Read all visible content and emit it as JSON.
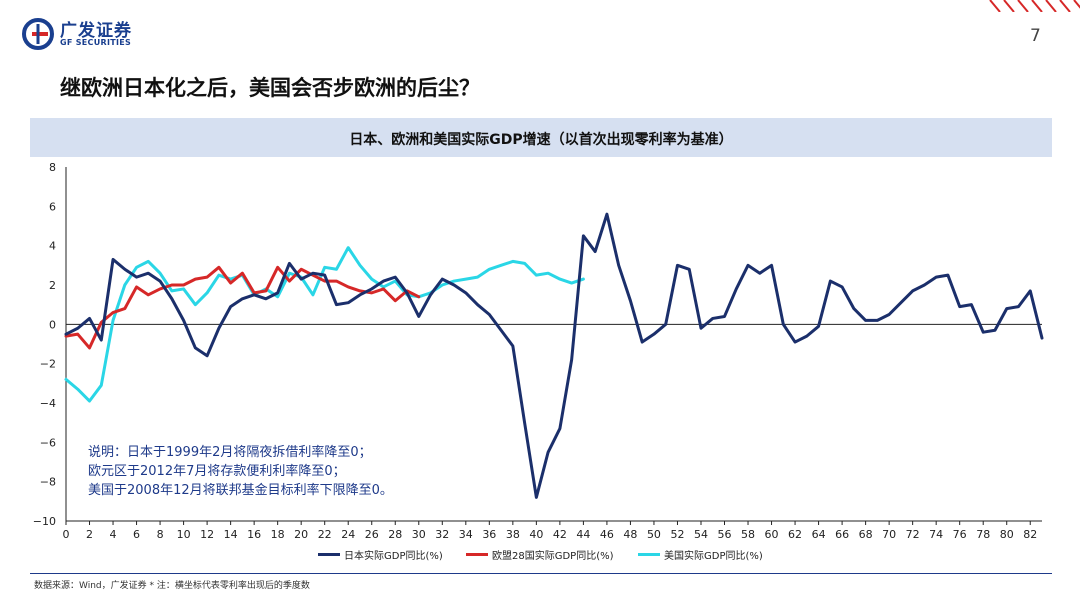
{
  "header": {
    "logo_cn": "广发证券",
    "logo_en": "GF SECURITIES",
    "page_number": "7",
    "slide_title": "继欧洲日本化之后，美国会否步欧洲的后尘？"
  },
  "chart_title": "日本、欧洲和美国实际GDP增速（以首次出现零利率为基准）",
  "note": [
    "说明：日本于1999年2月将隔夜拆借利率降至0；",
    "欧元区于2012年7月将存款便利利率降至0；",
    "美国于2008年12月将联邦基金目标利率下限降至0。"
  ],
  "source": "数据来源：Wind，广发证券 * 注：横坐标代表零利率出现后的季度数",
  "colors": {
    "japan": "#1b2f6b",
    "euro": "#d62828",
    "us": "#2ad6e6",
    "brand": "#1a3f8f"
  },
  "chart_data": {
    "type": "line",
    "title": "日本、欧洲和美国实际GDP增速（以首次出现零利率为基准）",
    "xlabel": "",
    "ylabel": "",
    "xlim": [
      0,
      83
    ],
    "ylim": [
      -10,
      8
    ],
    "x_ticks": [
      0,
      2,
      4,
      6,
      8,
      10,
      12,
      14,
      16,
      18,
      20,
      22,
      24,
      26,
      28,
      30,
      32,
      34,
      36,
      38,
      40,
      42,
      44,
      46,
      48,
      50,
      52,
      54,
      56,
      58,
      60,
      62,
      64,
      66,
      68,
      70,
      72,
      74,
      76,
      78,
      80,
      82
    ],
    "y_ticks": [
      8,
      6,
      4,
      2,
      0,
      -2,
      -4,
      -6,
      -8,
      -10
    ],
    "y_tick_labels": [
      "8",
      "6",
      "4",
      "2",
      "0",
      "−2",
      "−4",
      "−6",
      "−8",
      "−10"
    ],
    "grid": false,
    "legend_position": "bottom",
    "series": [
      {
        "name": "日本实际GDP同比(%)",
        "color_key": "japan",
        "values": [
          [
            0,
            -0.5
          ],
          [
            1,
            -0.2
          ],
          [
            2,
            0.3
          ],
          [
            3,
            -0.8
          ],
          [
            4,
            3.3
          ],
          [
            5,
            2.8
          ],
          [
            6,
            2.4
          ],
          [
            7,
            2.6
          ],
          [
            8,
            2.2
          ],
          [
            9,
            1.3
          ],
          [
            10,
            0.2
          ],
          [
            11,
            -1.2
          ],
          [
            12,
            -1.6
          ],
          [
            13,
            -0.2
          ],
          [
            14,
            0.9
          ],
          [
            15,
            1.3
          ],
          [
            16,
            1.5
          ],
          [
            17,
            1.3
          ],
          [
            18,
            1.6
          ],
          [
            19,
            3.1
          ],
          [
            20,
            2.3
          ],
          [
            21,
            2.6
          ],
          [
            22,
            2.5
          ],
          [
            23,
            1.0
          ],
          [
            24,
            1.1
          ],
          [
            25,
            1.5
          ],
          [
            26,
            1.8
          ],
          [
            27,
            2.2
          ],
          [
            28,
            2.4
          ],
          [
            29,
            1.6
          ],
          [
            30,
            0.4
          ],
          [
            31,
            1.5
          ],
          [
            32,
            2.3
          ],
          [
            33,
            2.0
          ],
          [
            34,
            1.6
          ],
          [
            35,
            1.0
          ],
          [
            36,
            0.5
          ],
          [
            37,
            -0.3
          ],
          [
            38,
            -1.1
          ],
          [
            39,
            -5.0
          ],
          [
            40,
            -8.8
          ],
          [
            41,
            -6.5
          ],
          [
            42,
            -5.3
          ],
          [
            43,
            -1.8
          ],
          [
            44,
            4.5
          ],
          [
            45,
            3.7
          ],
          [
            46,
            5.6
          ],
          [
            47,
            3.0
          ],
          [
            48,
            1.2
          ],
          [
            49,
            -0.9
          ],
          [
            50,
            -0.5
          ],
          [
            51,
            0.0
          ],
          [
            52,
            3.0
          ],
          [
            53,
            2.8
          ],
          [
            54,
            -0.2
          ],
          [
            55,
            0.3
          ],
          [
            56,
            0.4
          ],
          [
            57,
            1.8
          ],
          [
            58,
            3.0
          ],
          [
            59,
            2.6
          ],
          [
            60,
            3.0
          ],
          [
            61,
            0.0
          ],
          [
            62,
            -0.9
          ],
          [
            63,
            -0.6
          ],
          [
            64,
            -0.1
          ],
          [
            65,
            2.2
          ],
          [
            66,
            1.9
          ],
          [
            67,
            0.8
          ],
          [
            68,
            0.2
          ],
          [
            69,
            0.2
          ],
          [
            70,
            0.5
          ],
          [
            71,
            1.1
          ],
          [
            72,
            1.7
          ],
          [
            73,
            2.0
          ],
          [
            74,
            2.4
          ],
          [
            75,
            2.5
          ],
          [
            76,
            0.9
          ],
          [
            77,
            1.0
          ],
          [
            78,
            -0.4
          ],
          [
            79,
            -0.3
          ],
          [
            80,
            0.8
          ],
          [
            81,
            0.9
          ],
          [
            82,
            1.7
          ],
          [
            83,
            -0.7
          ]
        ]
      },
      {
        "name": "欧盟28国实际GDP同比(%)",
        "color_key": "euro",
        "values": [
          [
            0,
            -0.6
          ],
          [
            1,
            -0.5
          ],
          [
            2,
            -1.2
          ],
          [
            3,
            0.1
          ],
          [
            4,
            0.6
          ],
          [
            5,
            0.8
          ],
          [
            6,
            1.9
          ],
          [
            7,
            1.5
          ],
          [
            8,
            1.8
          ],
          [
            9,
            2.0
          ],
          [
            10,
            2.0
          ],
          [
            11,
            2.3
          ],
          [
            12,
            2.4
          ],
          [
            13,
            2.9
          ],
          [
            14,
            2.1
          ],
          [
            15,
            2.6
          ],
          [
            16,
            1.6
          ],
          [
            17,
            1.7
          ],
          [
            18,
            2.9
          ],
          [
            19,
            2.2
          ],
          [
            20,
            2.8
          ],
          [
            21,
            2.5
          ],
          [
            22,
            2.2
          ],
          [
            23,
            2.2
          ],
          [
            24,
            1.9
          ],
          [
            25,
            1.7
          ],
          [
            26,
            1.6
          ],
          [
            27,
            1.8
          ],
          [
            28,
            1.2
          ],
          [
            29,
            1.7
          ],
          [
            30,
            1.4
          ]
        ]
      },
      {
        "name": "美国实际GDP同比(%)",
        "color_key": "us",
        "values": [
          [
            0,
            -2.8
          ],
          [
            1,
            -3.3
          ],
          [
            2,
            -3.9
          ],
          [
            3,
            -3.1
          ],
          [
            4,
            0.2
          ],
          [
            5,
            2.0
          ],
          [
            6,
            2.9
          ],
          [
            7,
            3.2
          ],
          [
            8,
            2.6
          ],
          [
            9,
            1.7
          ],
          [
            10,
            1.8
          ],
          [
            11,
            1.0
          ],
          [
            12,
            1.6
          ],
          [
            13,
            2.5
          ],
          [
            14,
            2.3
          ],
          [
            15,
            2.5
          ],
          [
            16,
            1.5
          ],
          [
            17,
            1.8
          ],
          [
            18,
            1.4
          ],
          [
            19,
            2.6
          ],
          [
            20,
            2.4
          ],
          [
            21,
            1.5
          ],
          [
            22,
            2.9
          ],
          [
            23,
            2.8
          ],
          [
            24,
            3.9
          ],
          [
            25,
            3.0
          ],
          [
            26,
            2.3
          ],
          [
            27,
            1.9
          ],
          [
            28,
            2.2
          ],
          [
            29,
            1.5
          ],
          [
            30,
            1.4
          ],
          [
            31,
            1.6
          ],
          [
            32,
            2.0
          ],
          [
            33,
            2.2
          ],
          [
            34,
            2.3
          ],
          [
            35,
            2.4
          ],
          [
            36,
            2.8
          ],
          [
            37,
            3.0
          ],
          [
            38,
            3.2
          ],
          [
            39,
            3.1
          ],
          [
            40,
            2.5
          ],
          [
            41,
            2.6
          ],
          [
            42,
            2.3
          ],
          [
            43,
            2.1
          ],
          [
            44,
            2.3
          ]
        ]
      }
    ]
  }
}
